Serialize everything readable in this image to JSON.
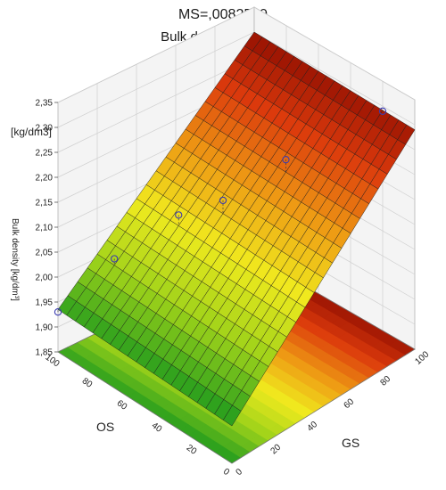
{
  "chart_data": {
    "type": "surface",
    "title": "MS=,0082569",
    "subtitle": "Bulk density [kg/dm",
    "subtitle_sup": "3",
    "subtitle_end": "]",
    "z_unit_label": "[kg/dm3]",
    "zlabel": "Bulk density [kg/dm³]",
    "xlabel": "OS",
    "ylabel": "GS",
    "x_ticks": [
      "100",
      "80",
      "60",
      "40",
      "20",
      "0"
    ],
    "y_ticks": [
      "0",
      "20",
      "40",
      "60",
      "80",
      "100"
    ],
    "z_ticks": [
      "1,85",
      "1,90",
      "1,95",
      "2,00",
      "2,05",
      "2,10",
      "2,15",
      "2,20",
      "2,25",
      "2,30",
      "2,35"
    ],
    "zlim": [
      1.85,
      2.35
    ],
    "xlim": [
      0,
      100
    ],
    "ylim": [
      0,
      100
    ],
    "surface_model": "plane fitted through z(OS=100,GS=0)=1.935, z(OS=100,GS=100)=2.30, z(OS=0,GS=100)=2.31",
    "points": [
      {
        "OS": 100,
        "GS": 0,
        "z": 1.93
      },
      {
        "OS": 90,
        "GS": 20,
        "z": 2.02
      },
      {
        "OS": 75,
        "GS": 40,
        "z": 2.1
      },
      {
        "OS": 60,
        "GS": 50,
        "z": 2.14
      },
      {
        "OS": 45,
        "GS": 70,
        "z": 2.21
      },
      {
        "OS": 20,
        "GS": 100,
        "z": 2.29
      }
    ],
    "colorscale": [
      "#1e9a1e",
      "#9ed21a",
      "#f0ea1e",
      "#ee9a14",
      "#dc3a0c",
      "#8a0a00"
    ],
    "grid": true
  }
}
